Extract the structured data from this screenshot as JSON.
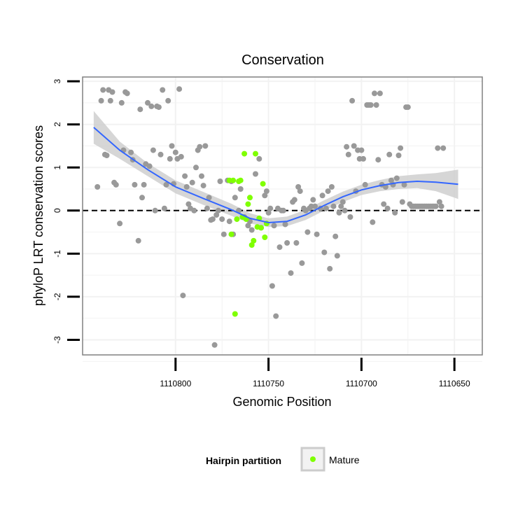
{
  "chart_data": {
    "type": "scatter",
    "title": "Conservation",
    "xlabel": "Genomic Position",
    "ylabel": "phyloP LRT conservation scores",
    "x_reversed": true,
    "xlim": [
      1110850,
      1110635
    ],
    "ylim": [
      -3.35,
      3.1
    ],
    "x_ticks": [
      1110800,
      1110750,
      1110700,
      1110650
    ],
    "x_tick_labels": [
      "1110800",
      "1110750",
      "1110700",
      "1110650"
    ],
    "y_ticks": [
      3,
      2,
      1,
      0,
      -1,
      -2,
      -3
    ],
    "y_tick_labels": [
      "3",
      "2",
      "1",
      "0",
      "-1",
      "-2",
      "-3"
    ],
    "grid": true,
    "reference_line": {
      "y": 0,
      "style": "dashed",
      "color": "#000000"
    },
    "legend": {
      "title": "Hairpin partition",
      "position": "bottom",
      "entries": [
        "Mature"
      ]
    },
    "colors": {
      "other": "#999999",
      "mature": "#7fff00",
      "smooth_line": "#3366ff",
      "ribbon": "#cccccc",
      "panel_border": "#808080",
      "grid": "#f2f2f2"
    },
    "series": [
      {
        "name": "",
        "role": "other",
        "points": [
          [
            1110842,
            0.55
          ],
          [
            1110840,
            2.55
          ],
          [
            1110839,
            2.8
          ],
          [
            1110838,
            1.3
          ],
          [
            1110837,
            1.28
          ],
          [
            1110836,
            2.8
          ],
          [
            1110835,
            2.55
          ],
          [
            1110834,
            2.75
          ],
          [
            1110833,
            0.65
          ],
          [
            1110832,
            0.6
          ],
          [
            1110830,
            -0.3
          ],
          [
            1110829,
            2.5
          ],
          [
            1110828,
            1.4
          ],
          [
            1110827,
            2.75
          ],
          [
            1110826,
            2.72
          ],
          [
            1110824,
            1.35
          ],
          [
            1110823,
            1.18
          ],
          [
            1110822,
            0.6
          ],
          [
            1110820,
            -0.7
          ],
          [
            1110819,
            2.35
          ],
          [
            1110818,
            0.3
          ],
          [
            1110817,
            0.6
          ],
          [
            1110816,
            1.08
          ],
          [
            1110815,
            2.5
          ],
          [
            1110814,
            1.03
          ],
          [
            1110813,
            2.42
          ],
          [
            1110812,
            1.4
          ],
          [
            1110811,
            0.0
          ],
          [
            1110810,
            2.42
          ],
          [
            1110809,
            2.4
          ],
          [
            1110808,
            1.3
          ],
          [
            1110807,
            2.8
          ],
          [
            1110806,
            0.05
          ],
          [
            1110805,
            0.6
          ],
          [
            1110804,
            2.55
          ],
          [
            1110803,
            1.2
          ],
          [
            1110802,
            1.5
          ],
          [
            1110801,
            0.62
          ],
          [
            1110800,
            1.35
          ],
          [
            1110799,
            1.2
          ],
          [
            1110798,
            2.82
          ],
          [
            1110797,
            1.25
          ],
          [
            1110796,
            -1.97
          ],
          [
            1110795,
            0.8
          ],
          [
            1110794,
            0.55
          ],
          [
            1110793,
            0.15
          ],
          [
            1110792,
            0.05
          ],
          [
            1110791,
            0.65
          ],
          [
            1110790,
            0.0
          ],
          [
            1110789,
            1.0
          ],
          [
            1110788,
            1.4
          ],
          [
            1110787,
            1.48
          ],
          [
            1110786,
            0.8
          ],
          [
            1110785,
            0.58
          ],
          [
            1110784,
            1.5
          ],
          [
            1110783,
            0.05
          ],
          [
            1110782,
            0.3
          ],
          [
            1110781,
            -0.22
          ],
          [
            1110780,
            -0.2
          ],
          [
            1110779,
            -3.12
          ],
          [
            1110778,
            -0.1
          ],
          [
            1110777,
            0.0
          ],
          [
            1110776,
            0.68
          ],
          [
            1110775,
            -0.2
          ],
          [
            1110774,
            -0.55
          ],
          [
            1110772,
            0.7
          ],
          [
            1110771,
            -0.25
          ],
          [
            1110770,
            0.68
          ],
          [
            1110769,
            -0.55
          ],
          [
            1110768,
            0.3
          ],
          [
            1110766,
            0.0
          ],
          [
            1110765,
            0.5
          ],
          [
            1110763,
            -0.15
          ],
          [
            1110761,
            -0.35
          ],
          [
            1110760,
            -0.25
          ],
          [
            1110759,
            -0.45
          ],
          [
            1110757,
            0.85
          ],
          [
            1110755,
            1.2
          ],
          [
            1110754,
            -0.4
          ],
          [
            1110752,
            0.35
          ],
          [
            1110751,
            0.45
          ],
          [
            1110750,
            -0.05
          ],
          [
            1110749,
            0.05
          ],
          [
            1110748,
            -1.75
          ],
          [
            1110747,
            -0.35
          ],
          [
            1110746,
            -2.45
          ],
          [
            1110745,
            0.05
          ],
          [
            1110744,
            -0.85
          ],
          [
            1110743,
            0.0
          ],
          [
            1110742,
            0.0
          ],
          [
            1110741,
            -0.32
          ],
          [
            1110740,
            -0.75
          ],
          [
            1110738,
            -1.45
          ],
          [
            1110737,
            0.2
          ],
          [
            1110736,
            0.25
          ],
          [
            1110735,
            -0.75
          ],
          [
            1110734,
            0.55
          ],
          [
            1110733,
            0.45
          ],
          [
            1110732,
            -1.22
          ],
          [
            1110731,
            0.05
          ],
          [
            1110730,
            0.0
          ],
          [
            1110729,
            -0.5
          ],
          [
            1110728,
            0.05
          ],
          [
            1110727,
            0.1
          ],
          [
            1110726,
            0.25
          ],
          [
            1110725,
            0.1
          ],
          [
            1110724,
            -0.55
          ],
          [
            1110722,
            0.05
          ],
          [
            1110721,
            0.35
          ],
          [
            1110720,
            -0.97
          ],
          [
            1110719,
            0.05
          ],
          [
            1110718,
            0.45
          ],
          [
            1110717,
            -1.35
          ],
          [
            1110716,
            0.55
          ],
          [
            1110715,
            0.1
          ],
          [
            1110714,
            -0.6
          ],
          [
            1110713,
            -1.05
          ],
          [
            1110712,
            -0.05
          ],
          [
            1110711,
            0.1
          ],
          [
            1110710,
            0.2
          ],
          [
            1110709,
            0.0
          ],
          [
            1110708,
            1.48
          ],
          [
            1110707,
            1.3
          ],
          [
            1110706,
            -0.15
          ],
          [
            1110705,
            2.55
          ],
          [
            1110704,
            1.5
          ],
          [
            1110703,
            0.45
          ],
          [
            1110702,
            1.4
          ],
          [
            1110701,
            1.2
          ],
          [
            1110700,
            1.4
          ],
          [
            1110699,
            1.2
          ],
          [
            1110698,
            0.6
          ],
          [
            1110697,
            2.45
          ],
          [
            1110696,
            2.45
          ],
          [
            1110695,
            2.45
          ],
          [
            1110694,
            -0.27
          ],
          [
            1110693,
            2.72
          ],
          [
            1110692,
            2.45
          ],
          [
            1110691,
            1.18
          ],
          [
            1110690,
            2.72
          ],
          [
            1110689,
            0.6
          ],
          [
            1110688,
            0.15
          ],
          [
            1110687,
            0.55
          ],
          [
            1110686,
            0.05
          ],
          [
            1110685,
            1.3
          ],
          [
            1110684,
            0.7
          ],
          [
            1110683,
            0.6
          ],
          [
            1110682,
            -0.05
          ],
          [
            1110681,
            0.75
          ],
          [
            1110680,
            1.28
          ],
          [
            1110679,
            1.45
          ],
          [
            1110678,
            0.2
          ],
          [
            1110677,
            0.6
          ],
          [
            1110676,
            2.4
          ],
          [
            1110675,
            2.4
          ],
          [
            1110674,
            0.15
          ],
          [
            1110673,
            0.1
          ],
          [
            1110672,
            0.1
          ],
          [
            1110671,
            0.1
          ],
          [
            1110670,
            0.1
          ],
          [
            1110669,
            0.1
          ],
          [
            1110668,
            0.1
          ],
          [
            1110667,
            0.1
          ],
          [
            1110666,
            0.1
          ],
          [
            1110665,
            0.1
          ],
          [
            1110664,
            0.1
          ],
          [
            1110663,
            0.1
          ],
          [
            1110662,
            0.1
          ],
          [
            1110661,
            0.1
          ],
          [
            1110660,
            0.1
          ],
          [
            1110659,
            1.45
          ],
          [
            1110658,
            0.2
          ],
          [
            1110657,
            0.1
          ],
          [
            1110656,
            1.45
          ]
        ]
      },
      {
        "name": "Mature",
        "role": "mature",
        "points": [
          [
            1110771,
            0.7
          ],
          [
            1110770,
            -0.55
          ],
          [
            1110769,
            0.7
          ],
          [
            1110768,
            -2.4
          ],
          [
            1110767,
            -0.2
          ],
          [
            1110766,
            0.68
          ],
          [
            1110765,
            0.7
          ],
          [
            1110764,
            -0.15
          ],
          [
            1110763,
            1.32
          ],
          [
            1110762,
            -0.2
          ],
          [
            1110761,
            0.15
          ],
          [
            1110760,
            0.3
          ],
          [
            1110759,
            -0.8
          ],
          [
            1110758,
            -0.7
          ],
          [
            1110757,
            1.32
          ],
          [
            1110756,
            -0.38
          ],
          [
            1110755,
            -0.18
          ],
          [
            1110754,
            -0.4
          ],
          [
            1110753,
            0.62
          ],
          [
            1110752,
            -0.62
          ],
          [
            1110751,
            -0.3
          ]
        ]
      }
    ],
    "smooth": {
      "x": [
        1110844,
        1110830,
        1110815,
        1110800,
        1110785,
        1110770,
        1110760,
        1110750,
        1110740,
        1110730,
        1110720,
        1110710,
        1110700,
        1110690,
        1110680,
        1110670,
        1110660,
        1110648
      ],
      "y": [
        1.93,
        1.4,
        0.95,
        0.55,
        0.28,
        0.02,
        -0.18,
        -0.28,
        -0.25,
        -0.1,
        0.12,
        0.32,
        0.48,
        0.58,
        0.65,
        0.68,
        0.66,
        0.61
      ],
      "lower": [
        1.55,
        1.2,
        0.8,
        0.4,
        0.13,
        -0.12,
        -0.3,
        -0.38,
        -0.36,
        -0.22,
        0.0,
        0.2,
        0.36,
        0.45,
        0.5,
        0.52,
        0.45,
        0.27
      ],
      "upper": [
        2.31,
        1.6,
        1.1,
        0.7,
        0.43,
        0.16,
        -0.06,
        -0.18,
        -0.14,
        0.02,
        0.24,
        0.44,
        0.6,
        0.71,
        0.8,
        0.84,
        0.87,
        0.95
      ]
    }
  }
}
